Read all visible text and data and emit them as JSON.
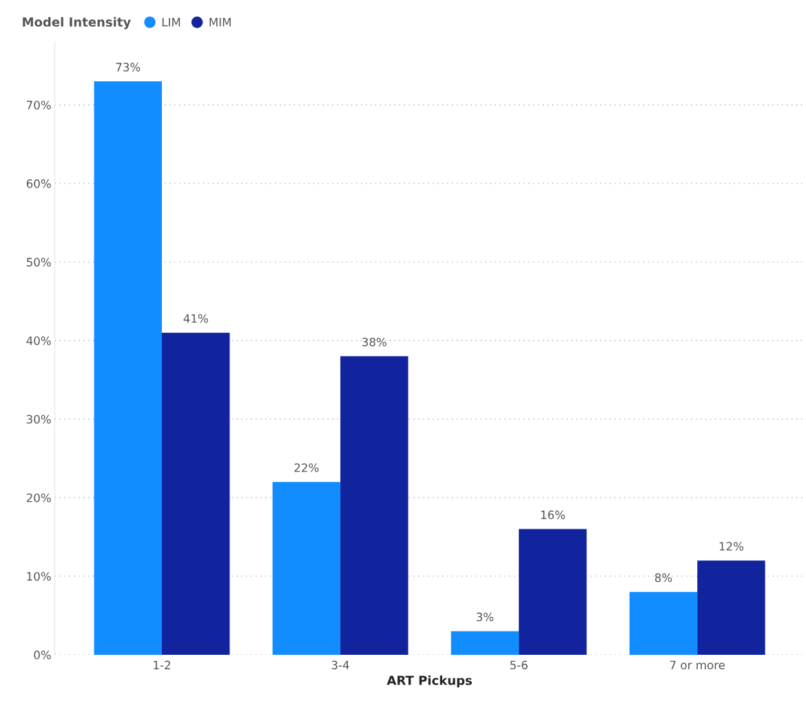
{
  "chart_data": {
    "type": "bar",
    "xlabel": "ART Pickups",
    "legend_title": "Model Intensity",
    "legend": "top left",
    "categories": [
      "1-2",
      "3-4",
      "5-6",
      "7 or more"
    ],
    "series": [
      {
        "name": "LIM",
        "color": "#118dff",
        "values": [
          73,
          22,
          3,
          8
        ],
        "value_labels": [
          "73%",
          "22%",
          "3%",
          "8%"
        ]
      },
      {
        "name": "MIM",
        "color": "#12239e",
        "values": [
          41,
          38,
          16,
          12
        ],
        "value_labels": [
          "41%",
          "38%",
          "16%",
          "12%"
        ]
      }
    ],
    "ylim": [
      0,
      78
    ],
    "yticks": [
      {
        "value": 0,
        "label": "0%"
      },
      {
        "value": 10,
        "label": "10%"
      },
      {
        "value": 20,
        "label": "20%"
      },
      {
        "value": 30,
        "label": "30%"
      },
      {
        "value": 40,
        "label": "40%"
      },
      {
        "value": 50,
        "label": "50%"
      },
      {
        "value": 60,
        "label": "60%"
      },
      {
        "value": 70,
        "label": "70%"
      }
    ],
    "grid": "y"
  }
}
